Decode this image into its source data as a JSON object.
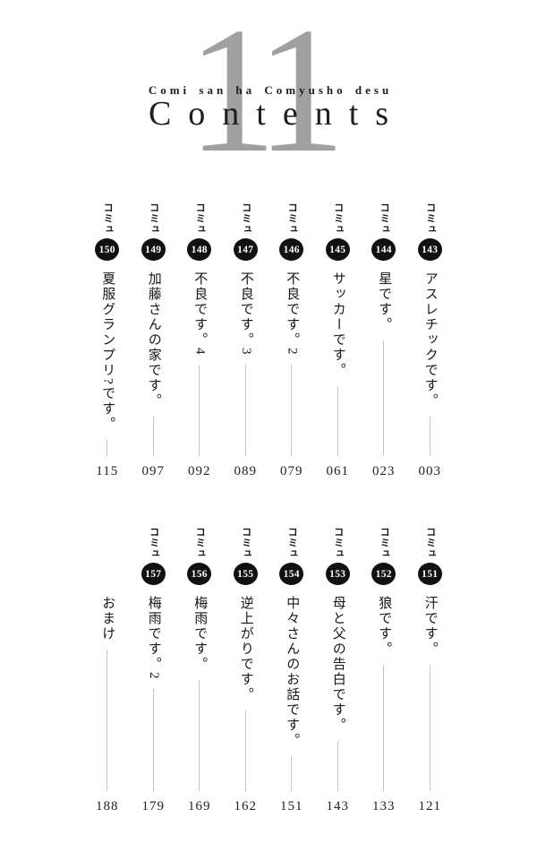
{
  "header": {
    "volume_number": "11",
    "series_romaji": "Comi san ha Comyusho desu",
    "contents_label": "Contents",
    "number_color": "#a0a0a0"
  },
  "toc": {
    "komyu_label": "コミュ",
    "badge_color": "#111111",
    "line_color": "#c5c5c5",
    "rows": [
      {
        "entries": [
          {
            "number": "150",
            "title": "夏服グランプリ?です。",
            "page": "115"
          },
          {
            "number": "149",
            "title": "加藤さんの家です。",
            "page": "097"
          },
          {
            "number": "148",
            "title": "不良です。4",
            "page": "092"
          },
          {
            "number": "147",
            "title": "不良です。3",
            "page": "089"
          },
          {
            "number": "146",
            "title": "不良です。2",
            "page": "079"
          },
          {
            "number": "145",
            "title": "サッカーです。",
            "page": "061"
          },
          {
            "number": "144",
            "title": "星です。",
            "page": "023"
          },
          {
            "number": "143",
            "title": "アスレチックです。",
            "page": "003"
          }
        ]
      },
      {
        "entries": [
          {
            "number": "",
            "title": "おまけ",
            "page": "188"
          },
          {
            "number": "157",
            "title": "梅雨です。2",
            "page": "179"
          },
          {
            "number": "156",
            "title": "梅雨です。",
            "page": "169"
          },
          {
            "number": "155",
            "title": "逆上がりです。",
            "page": "162"
          },
          {
            "number": "154",
            "title": "中々さんのお話です。",
            "page": "151"
          },
          {
            "number": "153",
            "title": "母と父の告白です。",
            "page": "143"
          },
          {
            "number": "152",
            "title": "狼です。",
            "page": "133"
          },
          {
            "number": "151",
            "title": "汗です。",
            "page": "121"
          }
        ]
      }
    ]
  }
}
